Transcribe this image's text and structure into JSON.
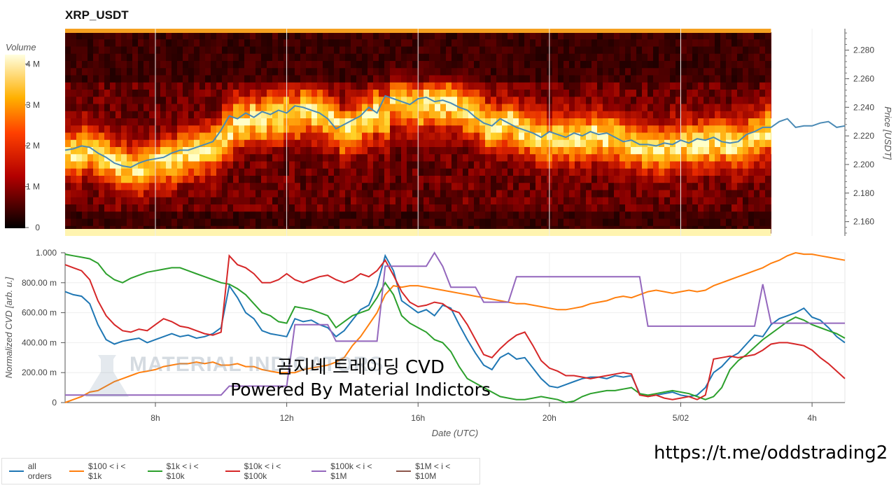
{
  "title": "XRP_USDT",
  "overlay": {
    "line1": "곰지네 트레이딩 CVD",
    "line2": "Powered By Material Indictors",
    "url": "https://t.me/oddstrading2",
    "watermark": "MATERIAL INDICATORS"
  },
  "colorbar": {
    "title": "Volume",
    "ticks": [
      "0",
      "1 M",
      "2 M",
      "3 M",
      "4 M"
    ]
  },
  "chart_data": [
    {
      "type": "heatmap",
      "title": "XRP_USDT",
      "ylabel": "Price [USDT]",
      "ylim": [
        2.15,
        2.295
      ],
      "y_ticks": [
        "2.160",
        "2.180",
        "2.200",
        "2.220",
        "2.240",
        "2.260",
        "2.280"
      ],
      "x_ticks": [
        "8h",
        "12h",
        "16h",
        "20h",
        "5/02",
        "4h"
      ],
      "xlim_hours": [
        5.25,
        29.0
      ],
      "heatmap_end_hour": 26.75,
      "price_line": {
        "color": "#4a8ab5",
        "x_hours": [
          5.25,
          5.5,
          5.75,
          6.0,
          6.25,
          6.5,
          6.75,
          7.0,
          7.25,
          7.5,
          7.75,
          8.0,
          8.25,
          8.5,
          8.75,
          9.0,
          9.25,
          9.5,
          9.75,
          10.0,
          10.25,
          10.5,
          10.75,
          11.0,
          11.25,
          11.5,
          11.75,
          12.0,
          12.25,
          12.5,
          12.75,
          13.0,
          13.25,
          13.5,
          13.75,
          14.0,
          14.25,
          14.5,
          14.75,
          15.0,
          15.25,
          15.5,
          15.75,
          16.0,
          16.25,
          16.5,
          16.75,
          17.0,
          17.25,
          17.5,
          17.75,
          18.0,
          18.25,
          18.5,
          18.75,
          19.0,
          19.25,
          19.5,
          19.75,
          20.0,
          20.25,
          20.5,
          20.75,
          21.0,
          21.25,
          21.5,
          21.75,
          22.0,
          22.25,
          22.5,
          22.75,
          23.0,
          23.25,
          23.5,
          23.75,
          24.0,
          24.25,
          24.5,
          24.75,
          25.0,
          25.25,
          25.5,
          25.75,
          26.0,
          26.25,
          26.5,
          26.75,
          27.0,
          27.25,
          27.5,
          27.75,
          28.0,
          28.25,
          28.5,
          28.75,
          29.0
        ],
        "y": [
          2.21,
          2.211,
          2.213,
          2.212,
          2.208,
          2.205,
          2.201,
          2.199,
          2.198,
          2.201,
          2.203,
          2.204,
          2.205,
          2.208,
          2.21,
          2.21,
          2.212,
          2.214,
          2.216,
          2.224,
          2.234,
          2.232,
          2.236,
          2.233,
          2.237,
          2.235,
          2.238,
          2.236,
          2.241,
          2.24,
          2.238,
          2.236,
          2.232,
          2.225,
          2.228,
          2.231,
          2.234,
          2.24,
          2.236,
          2.248,
          2.246,
          2.244,
          2.242,
          2.246,
          2.247,
          2.244,
          2.245,
          2.243,
          2.24,
          2.238,
          2.233,
          2.229,
          2.227,
          2.232,
          2.229,
          2.226,
          2.224,
          2.222,
          2.219,
          2.223,
          2.221,
          2.219,
          2.222,
          2.22,
          2.223,
          2.221,
          2.222,
          2.219,
          2.216,
          2.217,
          2.214,
          2.214,
          2.213,
          2.215,
          2.214,
          2.217,
          2.215,
          2.218,
          2.217,
          2.219,
          2.216,
          2.215,
          2.216,
          2.221,
          2.223,
          2.226,
          2.226,
          2.23,
          2.232,
          2.226,
          2.227,
          2.227,
          2.229,
          2.23,
          2.226,
          2.227
        ]
      }
    },
    {
      "type": "line",
      "xlabel": "Date (UTC)",
      "ylabel": "Normalized CVD [arb. u.]",
      "ylim": [
        0,
        1.0
      ],
      "y_ticks": [
        "0",
        "200.00 m",
        "400.00 m",
        "600.00 m",
        "800.00 m",
        "1.000"
      ],
      "x_ticks": [
        "8h",
        "12h",
        "16h",
        "20h",
        "5/02",
        "4h"
      ],
      "xlim_hours": [
        5.25,
        29.0
      ],
      "x_hours": [
        5.25,
        5.5,
        5.75,
        6.0,
        6.25,
        6.5,
        6.75,
        7.0,
        7.25,
        7.5,
        7.75,
        8.0,
        8.25,
        8.5,
        8.75,
        9.0,
        9.25,
        9.5,
        9.75,
        10.0,
        10.25,
        10.5,
        10.75,
        11.0,
        11.25,
        11.5,
        11.75,
        12.0,
        12.25,
        12.5,
        12.75,
        13.0,
        13.25,
        13.5,
        13.75,
        14.0,
        14.25,
        14.5,
        14.75,
        15.0,
        15.25,
        15.5,
        15.75,
        16.0,
        16.25,
        16.5,
        16.75,
        17.0,
        17.25,
        17.5,
        17.75,
        18.0,
        18.25,
        18.5,
        18.75,
        19.0,
        19.25,
        19.5,
        19.75,
        20.0,
        20.25,
        20.5,
        20.75,
        21.0,
        21.25,
        21.5,
        21.75,
        22.0,
        22.25,
        22.5,
        22.75,
        23.0,
        23.25,
        23.5,
        23.75,
        24.0,
        24.25,
        24.5,
        24.75,
        25.0,
        25.25,
        25.5,
        25.75,
        26.0,
        26.25,
        26.5,
        26.75,
        27.0,
        27.25,
        27.5,
        27.75,
        28.0,
        28.25,
        28.5,
        28.75,
        29.0
      ],
      "series": [
        {
          "name": "all orders",
          "color": "#1f77b4",
          "values": [
            0.74,
            0.72,
            0.71,
            0.66,
            0.52,
            0.42,
            0.39,
            0.41,
            0.42,
            0.43,
            0.4,
            0.42,
            0.44,
            0.46,
            0.44,
            0.45,
            0.43,
            0.44,
            0.46,
            0.5,
            0.78,
            0.7,
            0.6,
            0.56,
            0.48,
            0.46,
            0.45,
            0.44,
            0.56,
            0.54,
            0.55,
            0.52,
            0.5,
            0.44,
            0.48,
            0.55,
            0.62,
            0.65,
            0.78,
            0.98,
            0.88,
            0.68,
            0.64,
            0.6,
            0.62,
            0.58,
            0.65,
            0.63,
            0.52,
            0.42,
            0.33,
            0.25,
            0.22,
            0.3,
            0.33,
            0.29,
            0.3,
            0.23,
            0.16,
            0.11,
            0.1,
            0.12,
            0.14,
            0.16,
            0.17,
            0.17,
            0.16,
            0.18,
            0.17,
            0.18,
            0.06,
            0.04,
            0.05,
            0.06,
            0.07,
            0.05,
            0.04,
            0.05,
            0.1,
            0.2,
            0.24,
            0.3,
            0.33,
            0.39,
            0.45,
            0.44,
            0.52,
            0.56,
            0.58,
            0.6,
            0.63,
            0.57,
            0.55,
            0.5,
            0.44,
            0.4
          ]
        },
        {
          "name": "$100 < i < $1k",
          "color": "#ff7f0e",
          "values": [
            0.0,
            0.02,
            0.04,
            0.07,
            0.08,
            0.11,
            0.14,
            0.16,
            0.18,
            0.2,
            0.21,
            0.22,
            0.24,
            0.25,
            0.26,
            0.26,
            0.27,
            0.26,
            0.27,
            0.25,
            0.25,
            0.26,
            0.24,
            0.24,
            0.22,
            0.21,
            0.2,
            0.2,
            0.2,
            0.22,
            0.23,
            0.24,
            0.25,
            0.27,
            0.3,
            0.38,
            0.44,
            0.52,
            0.6,
            0.72,
            0.78,
            0.77,
            0.78,
            0.78,
            0.77,
            0.76,
            0.75,
            0.74,
            0.73,
            0.72,
            0.71,
            0.7,
            0.69,
            0.68,
            0.67,
            0.66,
            0.66,
            0.65,
            0.64,
            0.63,
            0.62,
            0.62,
            0.63,
            0.64,
            0.66,
            0.67,
            0.68,
            0.7,
            0.71,
            0.7,
            0.72,
            0.74,
            0.75,
            0.74,
            0.73,
            0.74,
            0.75,
            0.74,
            0.75,
            0.78,
            0.8,
            0.82,
            0.84,
            0.86,
            0.88,
            0.9,
            0.93,
            0.95,
            0.98,
            1.0,
            0.99,
            0.99,
            0.98,
            0.97,
            0.96,
            0.95
          ]
        },
        {
          "name": "$1k < i < $10k",
          "color": "#2ca02c",
          "values": [
            0.99,
            0.98,
            0.97,
            0.96,
            0.93,
            0.86,
            0.82,
            0.8,
            0.83,
            0.85,
            0.87,
            0.88,
            0.89,
            0.9,
            0.9,
            0.88,
            0.86,
            0.84,
            0.82,
            0.8,
            0.79,
            0.76,
            0.72,
            0.66,
            0.6,
            0.58,
            0.54,
            0.53,
            0.64,
            0.63,
            0.62,
            0.6,
            0.58,
            0.5,
            0.54,
            0.58,
            0.6,
            0.62,
            0.7,
            0.8,
            0.72,
            0.58,
            0.53,
            0.5,
            0.47,
            0.42,
            0.4,
            0.34,
            0.24,
            0.16,
            0.13,
            0.1,
            0.07,
            0.04,
            0.03,
            0.02,
            0.02,
            0.03,
            0.04,
            0.03,
            0.02,
            0.0,
            0.01,
            0.04,
            0.06,
            0.07,
            0.08,
            0.08,
            0.09,
            0.1,
            0.06,
            0.05,
            0.06,
            0.07,
            0.08,
            0.07,
            0.06,
            0.04,
            0.02,
            0.04,
            0.1,
            0.22,
            0.28,
            0.32,
            0.37,
            0.42,
            0.46,
            0.5,
            0.54,
            0.57,
            0.55,
            0.52,
            0.5,
            0.48,
            0.46,
            0.43
          ]
        },
        {
          "name": "$10k < i < $100k",
          "color": "#d62728",
          "values": [
            0.92,
            0.9,
            0.88,
            0.82,
            0.68,
            0.58,
            0.52,
            0.48,
            0.47,
            0.49,
            0.48,
            0.52,
            0.56,
            0.54,
            0.51,
            0.5,
            0.48,
            0.46,
            0.45,
            0.47,
            0.98,
            0.92,
            0.9,
            0.86,
            0.8,
            0.8,
            0.82,
            0.86,
            0.82,
            0.8,
            0.82,
            0.84,
            0.85,
            0.82,
            0.8,
            0.82,
            0.86,
            0.84,
            0.88,
            0.95,
            0.85,
            0.74,
            0.67,
            0.64,
            0.65,
            0.67,
            0.66,
            0.62,
            0.6,
            0.52,
            0.42,
            0.32,
            0.3,
            0.36,
            0.41,
            0.45,
            0.47,
            0.38,
            0.28,
            0.23,
            0.21,
            0.18,
            0.18,
            0.17,
            0.16,
            0.17,
            0.18,
            0.19,
            0.2,
            0.19,
            0.05,
            0.04,
            0.05,
            0.03,
            0.02,
            0.03,
            0.04,
            0.02,
            0.05,
            0.29,
            0.3,
            0.31,
            0.3,
            0.31,
            0.32,
            0.35,
            0.39,
            0.4,
            0.4,
            0.39,
            0.38,
            0.35,
            0.3,
            0.26,
            0.21,
            0.16
          ]
        },
        {
          "name": "$100k < i < $1M",
          "color": "#9467bd",
          "values": [
            0.05,
            0.05,
            0.05,
            0.05,
            0.05,
            0.05,
            0.05,
            0.05,
            0.05,
            0.05,
            0.05,
            0.05,
            0.05,
            0.05,
            0.05,
            0.05,
            0.05,
            0.05,
            0.05,
            0.05,
            0.11,
            0.11,
            0.11,
            0.11,
            0.11,
            0.11,
            0.11,
            0.11,
            0.52,
            0.52,
            0.52,
            0.52,
            0.52,
            0.41,
            0.41,
            0.41,
            0.41,
            0.41,
            0.41,
            0.91,
            0.91,
            0.91,
            0.91,
            0.91,
            0.91,
            1.0,
            0.91,
            0.77,
            0.77,
            0.77,
            0.77,
            0.67,
            0.67,
            0.67,
            0.67,
            0.84,
            0.84,
            0.84,
            0.84,
            0.84,
            0.84,
            0.84,
            0.84,
            0.84,
            0.84,
            0.84,
            0.84,
            0.84,
            0.84,
            0.84,
            0.84,
            0.51,
            0.51,
            0.51,
            0.51,
            0.51,
            0.51,
            0.51,
            0.51,
            0.51,
            0.51,
            0.51,
            0.51,
            0.51,
            0.51,
            0.79,
            0.53,
            0.53,
            0.53,
            0.53,
            0.53,
            0.53,
            0.53,
            0.53,
            0.53,
            0.53
          ]
        },
        {
          "name": "$1M < i < $10M",
          "color": "#8c564b",
          "values": []
        }
      ]
    }
  ],
  "legend": [
    {
      "label": "all orders",
      "color": "#1f77b4"
    },
    {
      "label": "$100 < i < $1k",
      "color": "#ff7f0e"
    },
    {
      "label": "$1k < i < $10k",
      "color": "#2ca02c"
    },
    {
      "label": "$10k < i < $100k",
      "color": "#d62728"
    },
    {
      "label": "$100k < i < $1M",
      "color": "#9467bd"
    },
    {
      "label": "$1M < i < $10M",
      "color": "#8c564b"
    }
  ]
}
